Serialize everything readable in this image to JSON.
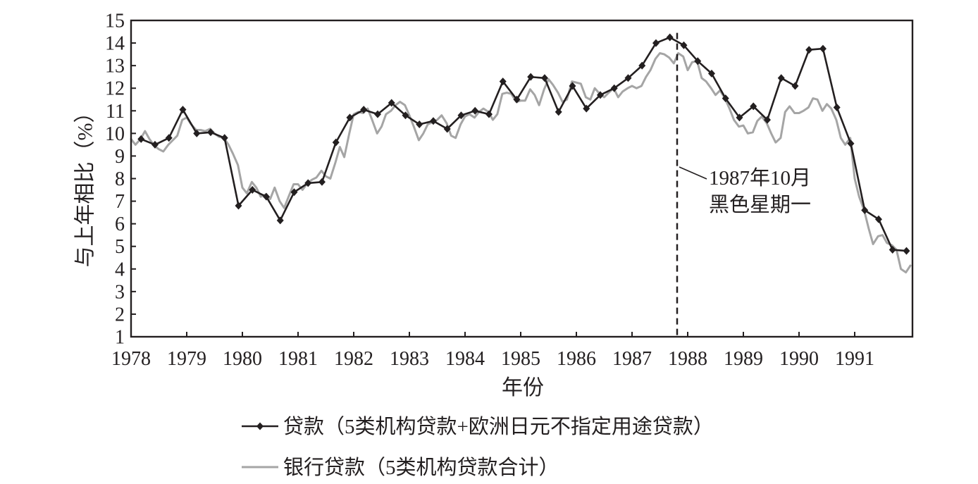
{
  "chart_data": {
    "type": "line",
    "xlabel": "年份",
    "ylabel": "与上年相比（%）",
    "xlim": [
      1978,
      1992
    ],
    "ylim": [
      1,
      15
    ],
    "xticks": [
      1978,
      1979,
      1980,
      1981,
      1982,
      1983,
      1984,
      1985,
      1986,
      1987,
      1988,
      1989,
      1990,
      1991
    ],
    "yticks": [
      1,
      2,
      3,
      4,
      5,
      6,
      7,
      8,
      9,
      10,
      11,
      12,
      13,
      14,
      15
    ],
    "grid": false,
    "legend_position": "bottom",
    "annotation": {
      "lines": [
        "1987年10月",
        "黑色星期一"
      ],
      "x": 1987.81,
      "line_style": "dashed"
    },
    "series": [
      {
        "name": "贷款（5类机构贷款+欧洲日元不指定用途贷款）",
        "color": "#231f20",
        "marker": "diamond",
        "x": [
          1978.18,
          1978.43,
          1978.68,
          1978.93,
          1979.18,
          1979.43,
          1979.68,
          1979.93,
          1980.18,
          1980.43,
          1980.68,
          1980.93,
          1981.18,
          1981.43,
          1981.68,
          1981.93,
          1982.18,
          1982.43,
          1982.68,
          1982.93,
          1983.18,
          1983.43,
          1983.68,
          1983.93,
          1984.18,
          1984.43,
          1984.68,
          1984.93,
          1985.18,
          1985.43,
          1985.68,
          1985.93,
          1986.18,
          1986.43,
          1986.68,
          1986.93,
          1987.18,
          1987.43,
          1987.68,
          1987.93,
          1988.18,
          1988.43,
          1988.68,
          1988.93,
          1989.18,
          1989.43,
          1989.68,
          1989.93,
          1990.18,
          1990.43,
          1990.68,
          1990.93,
          1991.18,
          1991.43,
          1991.68,
          1991.93
        ],
        "y": [
          9.75,
          9.5,
          9.8,
          11.05,
          10.0,
          10.05,
          9.8,
          6.8,
          7.5,
          7.2,
          6.15,
          7.4,
          7.8,
          7.85,
          9.6,
          10.7,
          11.05,
          10.85,
          11.35,
          10.8,
          10.4,
          10.55,
          10.2,
          10.8,
          11.0,
          10.85,
          12.3,
          11.5,
          12.5,
          12.45,
          10.95,
          12.1,
          11.1,
          11.7,
          12.0,
          12.45,
          13.0,
          14.0,
          14.25,
          13.9,
          13.2,
          12.65,
          11.55,
          10.7,
          11.2,
          10.6,
          12.45,
          12.1,
          13.7,
          13.75,
          11.15,
          9.55,
          6.6,
          6.2,
          4.85,
          4.8
        ]
      },
      {
        "name": "银行贷款（5类机构贷款合计）",
        "color": "#a5a5a5",
        "marker": "none",
        "x": [
          1978,
          1978.08,
          1978.17,
          1978.25,
          1978.33,
          1978.42,
          1978.5,
          1978.58,
          1978.67,
          1978.75,
          1978.83,
          1978.92,
          1979,
          1979.08,
          1979.17,
          1979.25,
          1979.33,
          1979.42,
          1979.5,
          1979.58,
          1979.67,
          1979.75,
          1979.83,
          1979.92,
          1980,
          1980.08,
          1980.17,
          1980.25,
          1980.33,
          1980.42,
          1980.5,
          1980.58,
          1980.67,
          1980.75,
          1980.83,
          1980.92,
          1981,
          1981.08,
          1981.17,
          1981.25,
          1981.33,
          1981.42,
          1981.5,
          1981.58,
          1981.67,
          1981.75,
          1981.83,
          1981.92,
          1982,
          1982.08,
          1982.17,
          1982.25,
          1982.33,
          1982.42,
          1982.5,
          1982.58,
          1982.67,
          1982.75,
          1982.83,
          1982.92,
          1983,
          1983.08,
          1983.17,
          1983.25,
          1983.33,
          1983.42,
          1983.5,
          1983.58,
          1983.67,
          1983.75,
          1983.83,
          1983.92,
          1984,
          1984.08,
          1984.17,
          1984.25,
          1984.33,
          1984.42,
          1984.5,
          1984.58,
          1984.67,
          1984.75,
          1984.83,
          1984.92,
          1985,
          1985.08,
          1985.17,
          1985.25,
          1985.33,
          1985.42,
          1985.5,
          1985.58,
          1985.67,
          1985.75,
          1985.83,
          1985.92,
          1986,
          1986.08,
          1986.17,
          1986.25,
          1986.33,
          1986.42,
          1986.5,
          1986.58,
          1986.67,
          1986.75,
          1986.83,
          1986.92,
          1987,
          1987.08,
          1987.17,
          1987.25,
          1987.33,
          1987.42,
          1987.5,
          1987.58,
          1987.67,
          1987.75,
          1987.83,
          1987.92,
          1988,
          1988.08,
          1988.17,
          1988.25,
          1988.33,
          1988.42,
          1988.5,
          1988.58,
          1988.67,
          1988.75,
          1988.83,
          1988.92,
          1989,
          1989.08,
          1989.17,
          1989.25,
          1989.33,
          1989.42,
          1989.5,
          1989.58,
          1989.67,
          1989.75,
          1989.83,
          1989.92,
          1990,
          1990.08,
          1990.17,
          1990.25,
          1990.33,
          1990.42,
          1990.5,
          1990.58,
          1990.67,
          1990.75,
          1990.83,
          1990.92,
          1991,
          1991.08,
          1991.17,
          1991.25,
          1991.33,
          1991.42,
          1991.5,
          1991.58,
          1991.67,
          1991.75,
          1991.83,
          1991.92,
          1992
        ],
        "y": [
          9.75,
          9.5,
          9.75,
          10.1,
          9.75,
          9.45,
          9.3,
          9.2,
          9.5,
          9.7,
          9.9,
          10.6,
          10.7,
          10.4,
          10.15,
          10.15,
          10.1,
          10.2,
          10.0,
          9.85,
          9.8,
          9.5,
          9.1,
          8.6,
          7.6,
          7.35,
          7.85,
          7.6,
          7.2,
          7.3,
          7.1,
          7.6,
          7.0,
          6.7,
          7.2,
          7.75,
          7.75,
          7.5,
          7.8,
          7.95,
          8.05,
          8.35,
          8.1,
          8.0,
          8.7,
          9.4,
          8.95,
          10.0,
          10.85,
          10.95,
          10.9,
          11.1,
          10.6,
          10.0,
          10.3,
          10.85,
          11.0,
          11.25,
          11.4,
          11.25,
          10.8,
          10.3,
          9.7,
          10.0,
          10.4,
          10.5,
          10.6,
          10.8,
          10.45,
          9.9,
          9.8,
          10.4,
          10.75,
          10.85,
          10.7,
          10.95,
          11.1,
          10.95,
          10.6,
          10.85,
          11.75,
          11.8,
          11.75,
          11.4,
          11.45,
          11.45,
          11.95,
          11.7,
          11.25,
          11.95,
          12.4,
          12.15,
          11.8,
          11.4,
          11.5,
          12.3,
          12.25,
          12.2,
          11.6,
          11.5,
          12.0,
          11.75,
          11.6,
          11.8,
          12.0,
          11.6,
          11.85,
          12.0,
          12.1,
          12.0,
          12.1,
          12.5,
          12.8,
          13.3,
          13.55,
          13.5,
          13.35,
          13.1,
          13.55,
          13.4,
          12.8,
          13.15,
          13.2,
          12.45,
          12.3,
          12.0,
          11.7,
          11.9,
          11.55,
          11.1,
          10.6,
          10.3,
          10.35,
          10.0,
          10.05,
          10.55,
          10.75,
          10.45,
          10.0,
          9.6,
          9.8,
          10.95,
          11.2,
          10.9,
          10.9,
          11.0,
          11.15,
          11.55,
          11.5,
          11.0,
          11.3,
          11.1,
          10.6,
          9.8,
          9.5,
          9.8,
          8.0,
          7.2,
          6.6,
          5.8,
          5.1,
          5.45,
          5.5,
          5.15,
          5.05,
          4.85,
          4.0,
          3.85,
          4.15
        ]
      }
    ]
  }
}
